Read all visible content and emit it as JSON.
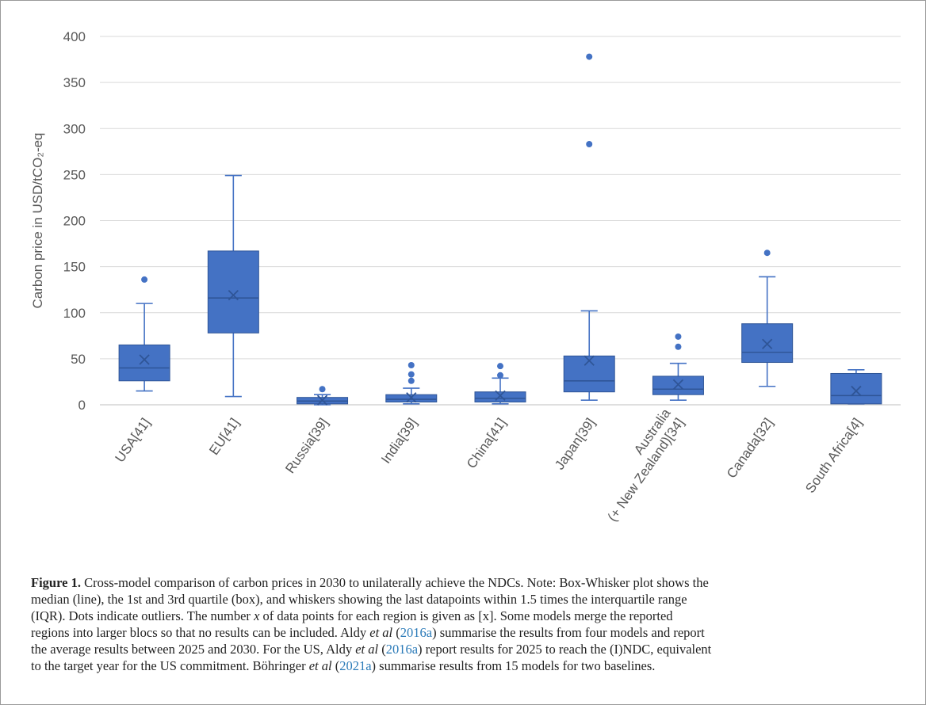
{
  "chart_data": {
    "type": "box",
    "ylabel": "Carbon price in USD/tCO₂-eq",
    "ylim": [
      0,
      400
    ],
    "yticks": [
      0,
      50,
      100,
      150,
      200,
      250,
      300,
      350,
      400
    ],
    "grid": true,
    "color": "#4472c4",
    "categories": [
      {
        "label": "USA[41]",
        "label_lines": [
          "USA[41]"
        ],
        "whisker_low": 15,
        "q1": 26,
        "median": 40,
        "q3": 65,
        "whisker_high": 110,
        "mean": 49,
        "outliers": [
          136
        ]
      },
      {
        "label": "EU[41]",
        "label_lines": [
          "EU[41]"
        ],
        "whisker_low": 9,
        "q1": 78,
        "median": 116,
        "q3": 167,
        "whisker_high": 249,
        "mean": 119,
        "outliers": []
      },
      {
        "label": "Russia[39]",
        "label_lines": [
          "Russia[39]"
        ],
        "whisker_low": 0,
        "q1": 1,
        "median": 4,
        "q3": 8,
        "whisker_high": 11,
        "mean": 5,
        "outliers": [
          17
        ]
      },
      {
        "label": "India[39]",
        "label_lines": [
          "India[39]"
        ],
        "whisker_low": 1,
        "q1": 3,
        "median": 6,
        "q3": 11,
        "whisker_high": 18,
        "mean": 8,
        "outliers": [
          26,
          33,
          43
        ]
      },
      {
        "label": "China[41]",
        "label_lines": [
          "China[41]"
        ],
        "whisker_low": 1,
        "q1": 3,
        "median": 7,
        "q3": 14,
        "whisker_high": 29,
        "mean": 10,
        "outliers": [
          32,
          42
        ]
      },
      {
        "label": "Japan[39]",
        "label_lines": [
          "Japan[39]"
        ],
        "whisker_low": 5,
        "q1": 14,
        "median": 26,
        "q3": 53,
        "whisker_high": 102,
        "mean": 48,
        "outliers": [
          283,
          378
        ]
      },
      {
        "label": "Australia (+ New Zealand)[34]",
        "label_lines": [
          "Australia",
          "(+ New Zealand)[34]"
        ],
        "whisker_low": 5,
        "q1": 11,
        "median": 17,
        "q3": 31,
        "whisker_high": 45,
        "mean": 22,
        "outliers": [
          63,
          74
        ]
      },
      {
        "label": "Canada[32]",
        "label_lines": [
          "Canada[32]"
        ],
        "whisker_low": 20,
        "q1": 46,
        "median": 57,
        "q3": 88,
        "whisker_high": 139,
        "mean": 66,
        "outliers": [
          165
        ]
      },
      {
        "label": "South Africa[4]",
        "label_lines": [
          "South Africa[4]"
        ],
        "whisker_low": 1,
        "q1": 1,
        "median": 10,
        "q3": 34,
        "whisker_high": 38,
        "mean": 15,
        "outliers": []
      }
    ]
  },
  "caption": {
    "label": "Figure 1.",
    "lines": [
      [
        {
          "t": " Cross-model comparison of carbon prices in 2030 to unilaterally achieve the NDCs. Note: Box-Whisker plot shows the"
        }
      ],
      [
        {
          "t": "median (line), the 1st and 3rd quartile (box), and whiskers showing the last datapoints within 1.5 times the interquartile range"
        }
      ],
      [
        {
          "t": "(IQR). Dots indicate outliers. The number "
        },
        {
          "t": "x",
          "i": true
        },
        {
          "t": " of data points for each region is given as [x]. Some models merge the reported"
        }
      ],
      [
        {
          "t": "regions into larger blocs so that no results can be included. Aldy "
        },
        {
          "t": "et al",
          "i": true
        },
        {
          "t": " ("
        },
        {
          "t": "2016a",
          "l": true
        },
        {
          "t": ") summarise the results from four models and report"
        }
      ],
      [
        {
          "t": "the average results between 2025 and 2030. For the US, Aldy "
        },
        {
          "t": "et al",
          "i": true
        },
        {
          "t": " ("
        },
        {
          "t": "2016a",
          "l": true
        },
        {
          "t": ") report results for 2025 to reach the (I)NDC, equivalent"
        }
      ],
      [
        {
          "t": "to the target year for the US commitment. Böhringer "
        },
        {
          "t": "et al",
          "i": true
        },
        {
          "t": " ("
        },
        {
          "t": "2021a",
          "l": true
        },
        {
          "t": ") summarise results from 15 models for two baselines."
        }
      ]
    ]
  }
}
